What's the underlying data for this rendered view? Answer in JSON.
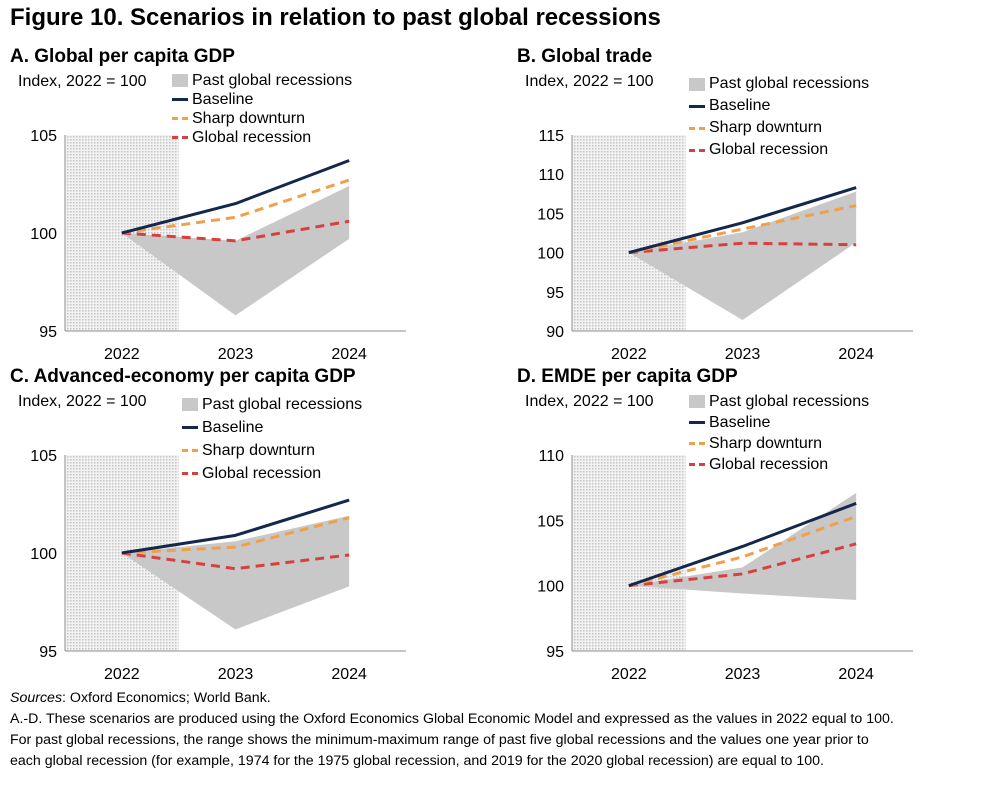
{
  "figure_title": "Figure 10. Scenarios in relation to past global recessions",
  "legend": {
    "area": "Past global recessions",
    "baseline": "Baseline",
    "sharp": "Sharp downturn",
    "recession": "Global recession"
  },
  "colors": {
    "area": "#c8c8c8",
    "baseline": "#15284b",
    "sharp": "#f0a04b",
    "recession": "#d8403f",
    "shade": "#dcdcdc"
  },
  "panels": [
    {
      "title": "A. Global per capita GDP",
      "unit": "Index, 2022 = 100"
    },
    {
      "title": "B. Global trade",
      "unit": "Index, 2022 = 100"
    },
    {
      "title": "C. Advanced-economy per capita GDP",
      "unit": "Index, 2022 = 100"
    },
    {
      "title": "D. EMDE per capita GDP",
      "unit": "Index, 2022 = 100"
    }
  ],
  "chart_data": [
    {
      "type": "line",
      "title": "A. Global per capita GDP",
      "ylabel": "Index, 2022 = 100",
      "categories": [
        "2022",
        "2023",
        "2024"
      ],
      "ylim": [
        95,
        105
      ],
      "yticks": [
        95,
        100,
        105
      ],
      "shaded_category": "2022",
      "range": {
        "name": "Past global recessions",
        "min": [
          100,
          95.8,
          99.7
        ],
        "max": [
          100,
          99.6,
          102.4
        ]
      },
      "series": [
        {
          "name": "Baseline",
          "values": [
            100,
            101.5,
            103.7
          ]
        },
        {
          "name": "Sharp downturn",
          "values": [
            100,
            100.8,
            102.7
          ]
        },
        {
          "name": "Global recession",
          "values": [
            100,
            99.6,
            100.6
          ]
        }
      ]
    },
    {
      "type": "line",
      "title": "B. Global trade",
      "ylabel": "Index, 2022 = 100",
      "categories": [
        "2022",
        "2023",
        "2024"
      ],
      "ylim": [
        90,
        115
      ],
      "yticks": [
        90,
        95,
        100,
        105,
        110,
        115
      ],
      "shaded_category": "2022",
      "range": {
        "name": "Past global recessions",
        "min": [
          100,
          91.4,
          101.3
        ],
        "max": [
          100,
          102.6,
          107.8
        ]
      },
      "series": [
        {
          "name": "Baseline",
          "values": [
            100,
            103.8,
            108.3
          ]
        },
        {
          "name": "Sharp downturn",
          "values": [
            100,
            103.0,
            106.0
          ]
        },
        {
          "name": "Global recession",
          "values": [
            100,
            101.2,
            101.0
          ]
        }
      ]
    },
    {
      "type": "line",
      "title": "C. Advanced-economy per capita GDP",
      "ylabel": "Index, 2022 = 100",
      "categories": [
        "2022",
        "2023",
        "2024"
      ],
      "ylim": [
        95,
        105
      ],
      "yticks": [
        95,
        100,
        105
      ],
      "shaded_category": "2022",
      "range": {
        "name": "Past global recessions",
        "min": [
          100,
          96.1,
          98.3
        ],
        "max": [
          100,
          100.6,
          101.9
        ]
      },
      "series": [
        {
          "name": "Baseline",
          "values": [
            100,
            100.9,
            102.7
          ]
        },
        {
          "name": "Sharp downturn",
          "values": [
            100,
            100.3,
            101.8
          ]
        },
        {
          "name": "Global recession",
          "values": [
            100,
            99.2,
            99.9
          ]
        }
      ]
    },
    {
      "type": "line",
      "title": "D. EMDE per capita GDP",
      "ylabel": "Index, 2022 = 100",
      "categories": [
        "2022",
        "2023",
        "2024"
      ],
      "ylim": [
        95,
        110
      ],
      "yticks": [
        95,
        100,
        105,
        110
      ],
      "shaded_category": "2022",
      "range": {
        "name": "Past global recessions",
        "min": [
          100,
          99.4,
          98.9
        ],
        "max": [
          100,
          101.4,
          107.1
        ]
      },
      "series": [
        {
          "name": "Baseline",
          "values": [
            100,
            103.0,
            106.3
          ]
        },
        {
          "name": "Sharp downturn",
          "values": [
            100,
            102.2,
            105.3
          ]
        },
        {
          "name": "Global recession",
          "values": [
            100,
            100.9,
            103.2
          ]
        }
      ]
    }
  ],
  "notes": {
    "sources_label": "Sources",
    "sources_text": ": Oxford Economics; World Bank.",
    "note_line1": "A.-D. These scenarios are produced using the Oxford Economics Global Economic Model and expressed as the values in 2022 equal to 100.",
    "note_line2": "For past global recessions, the range shows the minimum-maximum range of past five global recessions and the values one year prior to",
    "note_line3": "each global recession (for example, 1974 for the 1975 global recession, and 2019 for the 2020 global recession) are equal to 100."
  }
}
